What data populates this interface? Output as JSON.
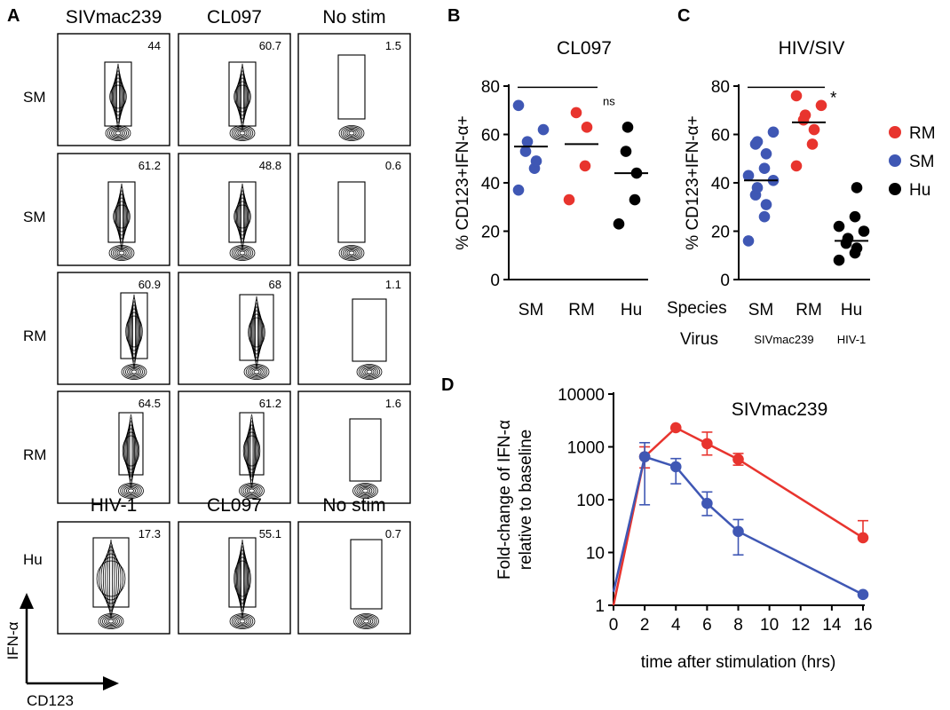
{
  "flow": {
    "letter": "A",
    "columns": [
      "SIVmac239",
      "CL097",
      "No stim"
    ],
    "hu_columns": [
      "HIV-1",
      "CL097",
      "No stim"
    ],
    "rows": [
      {
        "species": "SM",
        "values": [
          "44",
          "60.7",
          "1.5"
        ]
      },
      {
        "species": "SM",
        "values": [
          "61.2",
          "48.8",
          "0.6"
        ]
      },
      {
        "species": "RM",
        "values": [
          "60.9",
          "68",
          "1.1"
        ]
      },
      {
        "species": "RM",
        "values": [
          "64.5",
          "61.2",
          "1.6"
        ]
      },
      {
        "species": "Hu",
        "values": [
          "17.3",
          "55.1",
          "0.7"
        ]
      }
    ],
    "y_axis_label": "IFN-α",
    "x_axis_label": "CD123"
  },
  "legend": {
    "items": [
      {
        "label": "RM",
        "color": "#e8342e"
      },
      {
        "label": "SM",
        "color": "#3f57b4"
      },
      {
        "label": "Hu",
        "color": "#000000"
      }
    ]
  },
  "chart_data": [
    {
      "panel": "B",
      "type": "scatter",
      "title": "CL097",
      "ylabel": "% CD123+IFN-α+",
      "ylim": [
        0,
        80
      ],
      "yticks": [
        "0",
        "20",
        "40",
        "60",
        "80"
      ],
      "categories": [
        "SM",
        "RM",
        "Hu"
      ],
      "colors": [
        "#3f57b4",
        "#e8342e",
        "#000000"
      ],
      "points": [
        [
          37,
          46,
          49,
          53,
          57,
          62,
          72
        ],
        [
          33,
          47,
          63,
          69
        ],
        [
          23,
          33,
          44,
          53,
          63
        ]
      ],
      "medians": [
        55,
        56,
        44
      ],
      "significance": "ns"
    },
    {
      "panel": "C",
      "type": "scatter",
      "title": "HIV/SIV",
      "ylabel": "% CD123+IFN-α+",
      "ylim": [
        0,
        80
      ],
      "yticks": [
        "0",
        "20",
        "40",
        "60",
        "80"
      ],
      "categories": [
        "SM",
        "RM",
        "Hu"
      ],
      "colors": [
        "#3f57b4",
        "#e8342e",
        "#000000"
      ],
      "points": [
        [
          16,
          26,
          31,
          35,
          38,
          41,
          43,
          46,
          52,
          56,
          57,
          61
        ],
        [
          47,
          56,
          62,
          66,
          68,
          72,
          76
        ],
        [
          8,
          11,
          13,
          15,
          17,
          20,
          22,
          26,
          38
        ]
      ],
      "medians": [
        41,
        65,
        16
      ],
      "significance": "*",
      "species_row_label": "Species",
      "virus_row_label": "Virus",
      "virus_labels": [
        "SIVmac239",
        "HIV-1"
      ]
    },
    {
      "panel": "D",
      "type": "line",
      "title": "SIVmac239",
      "xlabel": "time after stimulation (hrs)",
      "ylabel_line1": "Fold-change of IFN-α",
      "ylabel_line2": "relative to baseline",
      "yscale": "log",
      "ylim": [
        1,
        10000
      ],
      "xlim": [
        0,
        16
      ],
      "xticks": [
        "0",
        "2",
        "4",
        "6",
        "8",
        "10",
        "12",
        "14",
        "16"
      ],
      "yticks": [
        "1",
        "10",
        "100",
        "1000",
        "10000"
      ],
      "series": [
        {
          "legend": "RM",
          "color": "#e8342e",
          "x": [
            0,
            2,
            4,
            6,
            8,
            16
          ],
          "y": [
            1,
            650,
            2300,
            1150,
            580,
            19
          ],
          "err_lo": [
            1,
            400,
            2300,
            700,
            450,
            19
          ],
          "err_hi": [
            1,
            1000,
            2300,
            1900,
            750,
            40
          ]
        },
        {
          "legend": "SM",
          "color": "#3f57b4",
          "x": [
            0,
            2,
            4,
            6,
            8,
            16
          ],
          "y": [
            1.8,
            650,
            420,
            85,
            25,
            1.6
          ],
          "err_lo": [
            1.8,
            80,
            200,
            50,
            9,
            1.6
          ],
          "err_hi": [
            1.8,
            1200,
            600,
            140,
            42,
            1.6
          ]
        }
      ]
    }
  ],
  "panel_letters": [
    "B",
    "C",
    "D"
  ]
}
